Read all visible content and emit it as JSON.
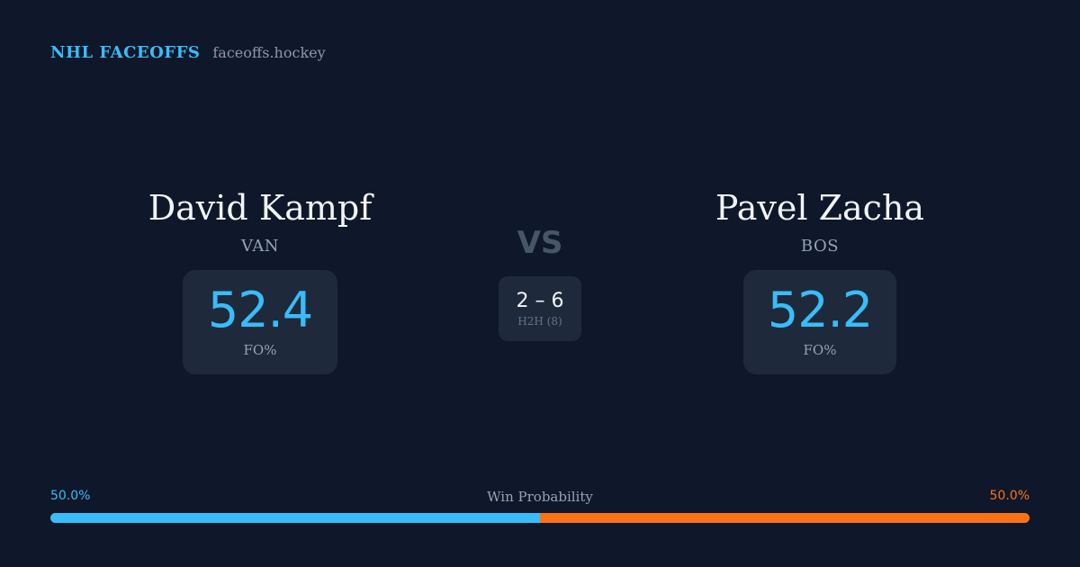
{
  "brand": {
    "name": "NHL FACEOFFS",
    "url": "faceoffs.hockey"
  },
  "matchup": {
    "home": {
      "name": "David Kampf",
      "team": "VAN",
      "stat_value": "52.4",
      "stat_label": "FO%"
    },
    "away": {
      "name": "Pavel Zacha",
      "team": "BOS",
      "stat_value": "52.2",
      "stat_label": "FO%"
    },
    "vs_label": "VS",
    "h2h": {
      "score": "2 – 6",
      "label": "H2H (8)"
    }
  },
  "win_probability": {
    "title": "Win Probability",
    "home_label": "50.0%",
    "away_label": "50.0%",
    "home_fraction": 0.5,
    "home_color": "#38bdf8",
    "away_color": "#f97316"
  }
}
